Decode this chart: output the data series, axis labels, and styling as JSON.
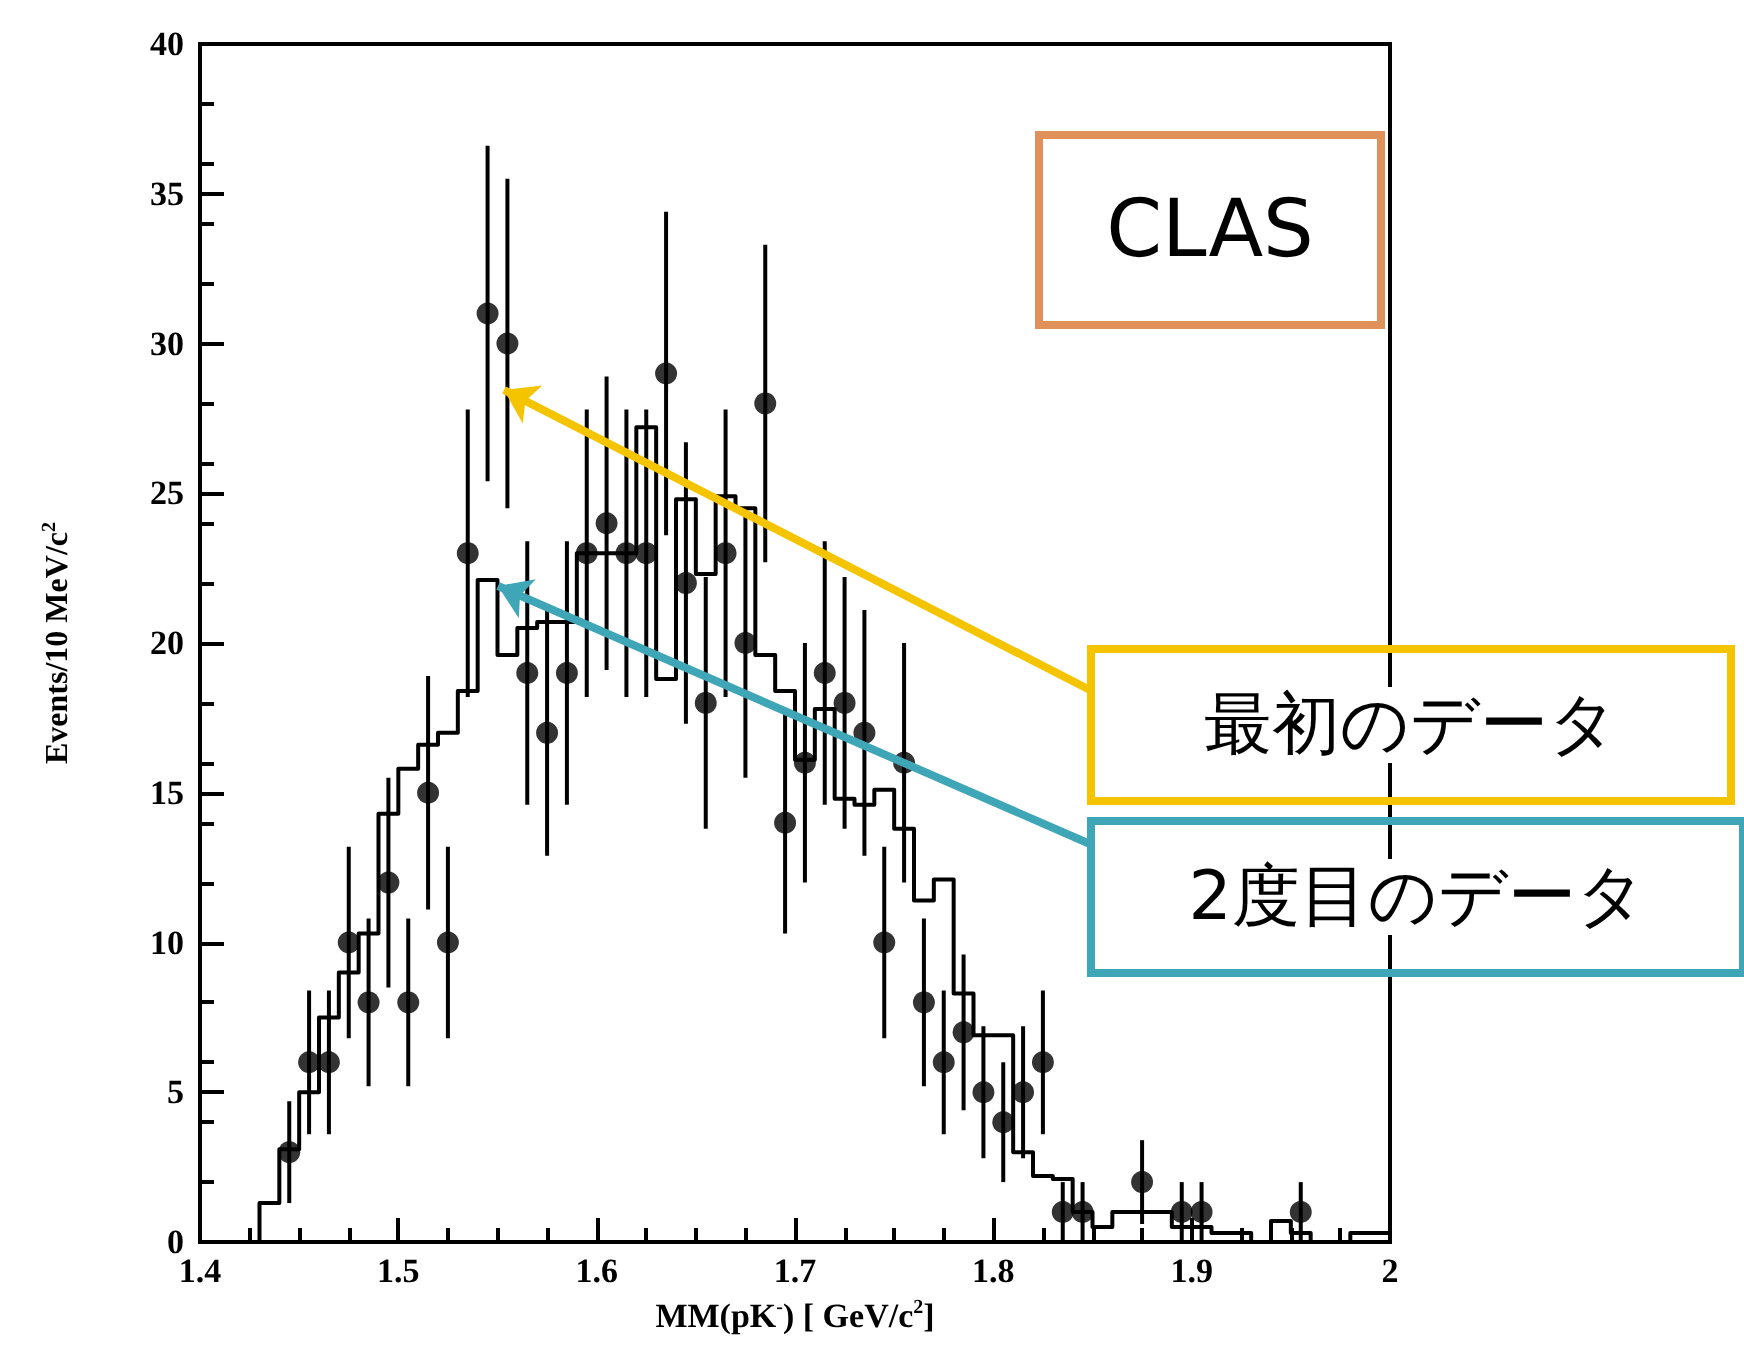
{
  "chart_data": {
    "type": "histogram",
    "xlabel": "MM(pK$^{-}$) [ GeV/c$^{2}$]",
    "ylabel": "Events/10 MeV/c$^{2}$",
    "xlim": [
      1.4,
      2
    ],
    "xticks": [
      1.4,
      1.5,
      1.6,
      1.7,
      1.8,
      1.9,
      2
    ],
    "ylim": [
      0,
      40
    ],
    "yticks": [
      0,
      5,
      10,
      15,
      20,
      25,
      30,
      35,
      40
    ],
    "series": [
      {
        "color": "#000000",
        "bins": [
          1.4,
          1.41,
          1.42,
          1.43,
          1.44,
          1.45,
          1.46,
          1.47,
          1.48,
          1.49,
          1.5,
          1.51,
          1.52,
          1.53,
          1.54,
          1.55,
          1.56,
          1.57,
          1.58,
          1.59,
          1.6,
          1.61,
          1.62,
          1.63,
          1.64,
          1.65,
          1.66,
          1.67,
          1.68,
          1.69,
          1.7,
          1.71,
          1.72,
          1.73,
          1.74,
          1.75,
          1.76,
          1.77,
          1.78,
          1.79,
          1.8,
          1.81,
          1.82,
          1.83,
          1.84,
          1.85,
          1.86,
          1.87,
          1.88,
          1.89,
          1.9,
          1.91,
          1.92,
          1.93,
          1.94,
          1.95,
          1.96,
          1.97,
          1.98,
          1.99,
          2
        ],
        "values": [
          0,
          0,
          0,
          1.3,
          3.1,
          5.0,
          7.5,
          9.0,
          10.3,
          14.3,
          15.8,
          16.6,
          17.0,
          18.4,
          22.1,
          19.6,
          20.5,
          20.7,
          20.7,
          23.0,
          23.0,
          23.0,
          27.2,
          18.8,
          24.8,
          22.3,
          24.9,
          24.5,
          19.6,
          18.4,
          16.1,
          17.8,
          14.8,
          14.6,
          15.1,
          13.8,
          11.4,
          12.1,
          8.3,
          6.9,
          6.9,
          3.0,
          2.2,
          2.1,
          1.0,
          0.5,
          1.0,
          1.0,
          1.0,
          0.5,
          0.5,
          0.3,
          0.3,
          0,
          0.7,
          0.3,
          0,
          0,
          0.3,
          0.3
        ]
      },
      {
        "type": "scatter",
        "color": "#000000",
        "marker": "circle",
        "x": [
          1.445,
          1.455,
          1.465,
          1.475,
          1.485,
          1.495,
          1.505,
          1.515,
          1.525,
          1.535,
          1.545,
          1.555,
          1.565,
          1.575,
          1.585,
          1.595,
          1.605,
          1.615,
          1.625,
          1.635,
          1.645,
          1.655,
          1.665,
          1.675,
          1.685,
          1.695,
          1.705,
          1.715,
          1.725,
          1.735,
          1.745,
          1.755,
          1.765,
          1.775,
          1.785,
          1.795,
          1.805,
          1.815,
          1.825,
          1.835,
          1.845,
          1.875,
          1.895,
          1.905,
          1.955
        ],
        "values": [
          3,
          6,
          6,
          10,
          8,
          12,
          8,
          15,
          10,
          23,
          31,
          30,
          19,
          17,
          19,
          23,
          24,
          23,
          23,
          29,
          22,
          18,
          23,
          20,
          28,
          14,
          16,
          19,
          18,
          17,
          10,
          16,
          8,
          6,
          7,
          5,
          4,
          5,
          6,
          1,
          1,
          2,
          1,
          1,
          1
        ],
        "errors": [
          1.7,
          2.4,
          2.4,
          3.2,
          2.8,
          3.5,
          2.8,
          3.9,
          3.2,
          4.8,
          5.6,
          5.5,
          4.4,
          4.1,
          4.4,
          4.8,
          4.9,
          4.8,
          4.8,
          5.4,
          4.7,
          4.2,
          4.8,
          4.5,
          5.3,
          3.7,
          4.0,
          4.4,
          4.2,
          4.1,
          3.2,
          4.0,
          2.8,
          2.4,
          2.6,
          2.2,
          2.0,
          2.2,
          2.4,
          1.0,
          1.0,
          1.4,
          1.0,
          1.0,
          1.0
        ]
      }
    ],
    "annotations": [
      "CLAS",
      "最初のデータ",
      "2度目のデータ"
    ]
  }
}
